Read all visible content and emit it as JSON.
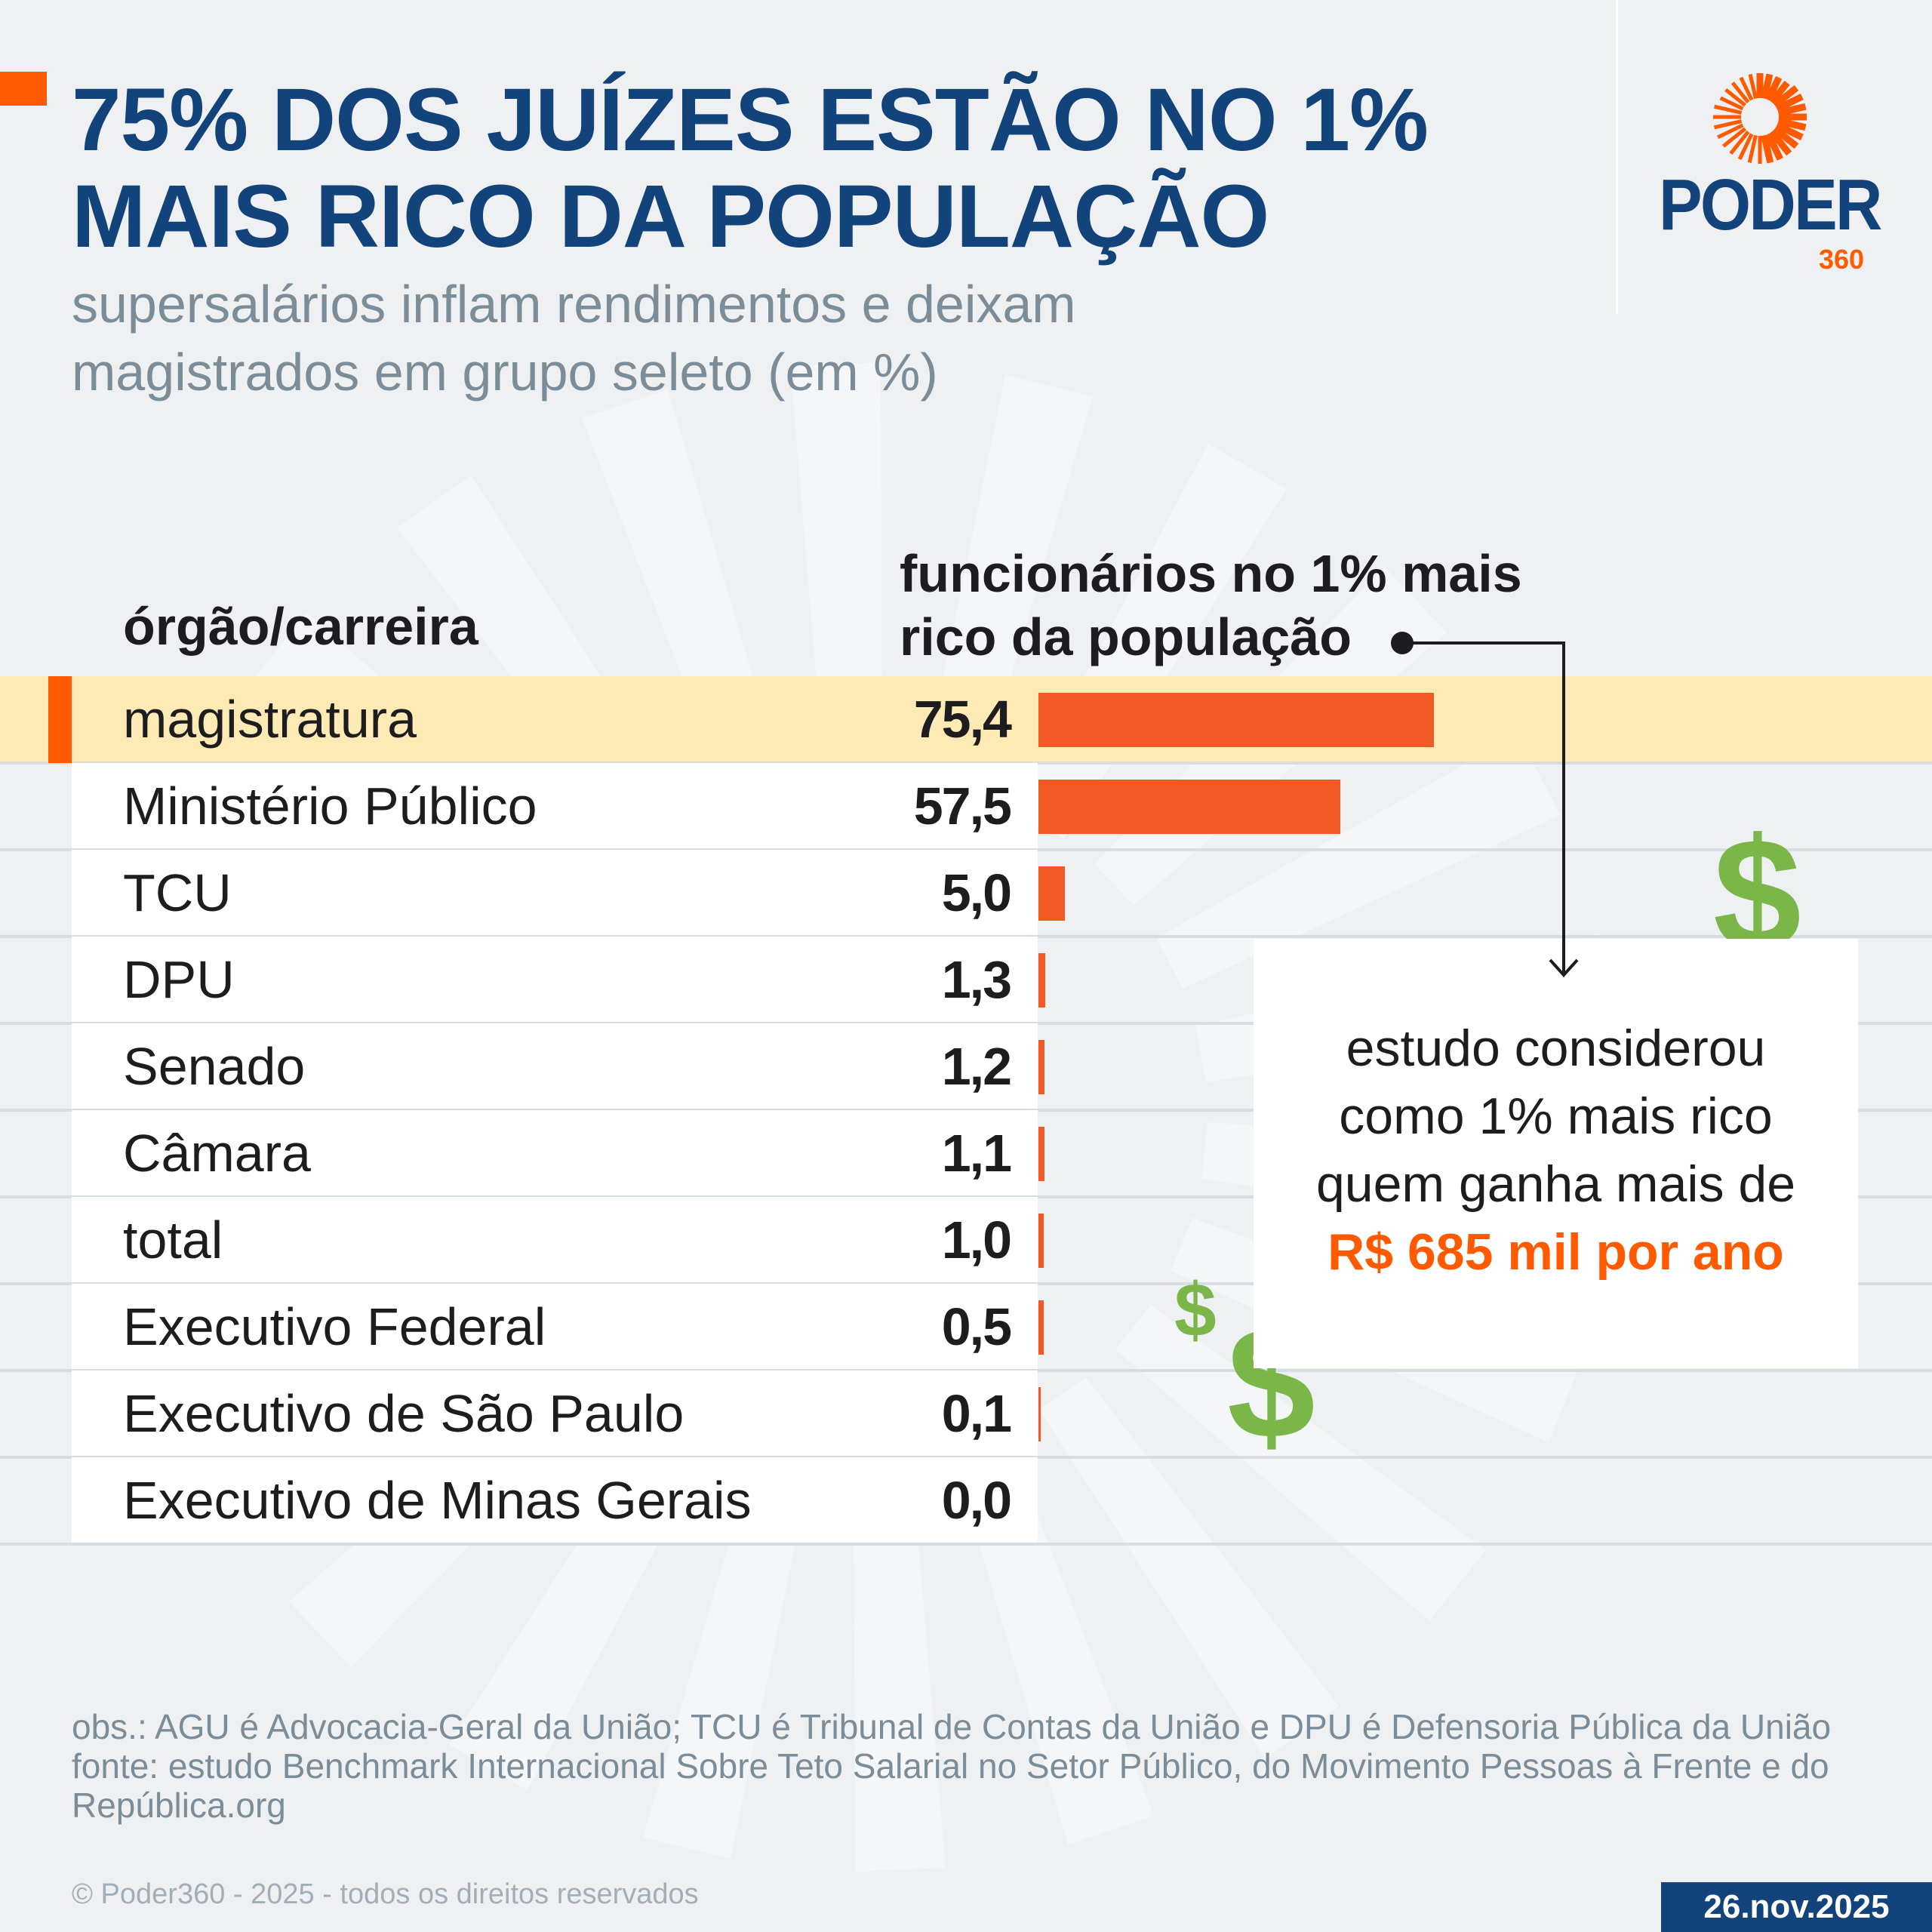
{
  "header": {
    "title_line1": "75% DOS JUÍZES ESTÃO NO 1%",
    "title_line2": "MAIS RICO DA POPULAÇÃO",
    "subtitle_line1": "supersalários inflam rendimentos e deixam",
    "subtitle_line2": "magistrados em grupo seleto (em %)"
  },
  "logo": {
    "name": "PODER",
    "suffix": "360",
    "icon": "sun-rays-logo-icon"
  },
  "colors": {
    "title": "#12437a",
    "accent": "#ff5a00",
    "bar": "#f15a24",
    "highlight": "#fdeab5",
    "dollar": "#7ab648",
    "muted": "#7a8d99"
  },
  "table": {
    "col_left": "órgão/carreira",
    "col_right_line1": "funcionários no 1% mais",
    "col_right_line2": "rico da população"
  },
  "chart_data": {
    "type": "bar",
    "orientation": "horizontal",
    "categories": [
      "magistratura",
      "Ministério Público",
      "TCU",
      "DPU",
      "Senado",
      "Câmara",
      "total",
      "Executivo Federal",
      "Executivo de São Paulo",
      "Executivo de Minas Gerais"
    ],
    "values": [
      75.4,
      57.5,
      5.0,
      1.3,
      1.2,
      1.1,
      1.0,
      0.5,
      0.1,
      0.0
    ],
    "value_labels": [
      "75,4",
      "57,5",
      "5,0",
      "1,3",
      "1,2",
      "1,1",
      "1,0",
      "0,5",
      "0,1",
      "0,0"
    ],
    "highlighted": "magistratura",
    "unit": "%"
  },
  "callout": {
    "line1": "estudo considerou",
    "line2": "como 1% mais rico",
    "line3": "quem ganha mais de",
    "highlight": "R$ 685 mil por ano"
  },
  "decor": {
    "dollar": "$"
  },
  "footer": {
    "obs": "obs.: AGU é Advocacia-Geral da União; TCU é Tribunal de Contas da União e DPU é Defensoria Pública da União",
    "source": "fonte: estudo Benchmark Internacional Sobre Teto Salarial no Setor Público, do Movimento Pessoas à Frente e do República.org",
    "copyright": "© Poder360 - 2025 - todos os direitos reservados",
    "date": "26.nov.2025"
  }
}
